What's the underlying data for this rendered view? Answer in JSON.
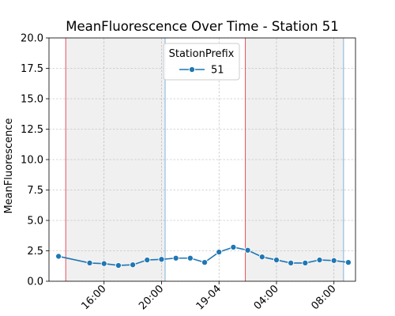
{
  "chart_data": {
    "type": "line",
    "title": "MeanFluorescence Over Time - Station 51",
    "xlabel": "",
    "ylabel": "MeanFluorescence",
    "ylim": [
      0,
      20
    ],
    "y_ticks": [
      0.0,
      2.5,
      5.0,
      7.5,
      10.0,
      12.5,
      15.0,
      17.5,
      20.0
    ],
    "y_tick_labels": [
      "0.0",
      "2.5",
      "5.0",
      "7.5",
      "10.0",
      "12.5",
      "15.0",
      "17.5",
      "20.0"
    ],
    "xlim": [
      "2000-04-18 12:10",
      "2000-04-19 09:30"
    ],
    "x_ticks": [
      "2000-04-18 16:00",
      "2000-04-18 20:00",
      "2000-04-19 00:00",
      "2000-04-19 04:00",
      "2000-04-19 08:00"
    ],
    "x_tick_labels": [
      "16:00",
      "20:00",
      "19-04",
      "04:00",
      "08:00"
    ],
    "grid": true,
    "legend": {
      "title": "StationPrefix",
      "placement": "top-center",
      "entries": [
        "51"
      ]
    },
    "series": [
      {
        "name": "51",
        "color": "#1f77b4",
        "marker": "circle",
        "points": [
          {
            "x": "2000-04-18 12:50",
            "y": 2.05
          },
          {
            "x": "2000-04-18 15:00",
            "y": 1.5
          },
          {
            "x": "2000-04-18 16:00",
            "y": 1.45
          },
          {
            "x": "2000-04-18 17:00",
            "y": 1.3
          },
          {
            "x": "2000-04-18 18:00",
            "y": 1.35
          },
          {
            "x": "2000-04-18 19:00",
            "y": 1.75
          },
          {
            "x": "2000-04-18 20:00",
            "y": 1.8
          },
          {
            "x": "2000-04-18 21:00",
            "y": 1.9
          },
          {
            "x": "2000-04-18 22:00",
            "y": 1.9
          },
          {
            "x": "2000-04-18 23:00",
            "y": 1.55
          },
          {
            "x": "2000-04-19 00:00",
            "y": 2.4
          },
          {
            "x": "2000-04-19 01:00",
            "y": 2.8
          },
          {
            "x": "2000-04-19 02:00",
            "y": 2.55
          },
          {
            "x": "2000-04-19 03:00",
            "y": 2.0
          },
          {
            "x": "2000-04-19 04:00",
            "y": 1.75
          },
          {
            "x": "2000-04-19 05:00",
            "y": 1.5
          },
          {
            "x": "2000-04-19 06:00",
            "y": 1.5
          },
          {
            "x": "2000-04-19 07:00",
            "y": 1.75
          },
          {
            "x": "2000-04-19 08:00",
            "y": 1.7
          },
          {
            "x": "2000-04-19 09:00",
            "y": 1.55
          }
        ]
      }
    ],
    "shaded_periods": [
      {
        "start": "2000-04-18 13:20",
        "end": "2000-04-18 20:15",
        "fill": "#f0f0f0"
      },
      {
        "start": "2000-04-19 01:50",
        "end": "2000-04-19 08:40",
        "fill": "#f0f0f0"
      }
    ],
    "vertical_lines": [
      {
        "x": "2000-04-18 13:20",
        "color": "#e8505b"
      },
      {
        "x": "2000-04-18 20:15",
        "color": "#7fb2d8"
      },
      {
        "x": "2000-04-19 01:50",
        "color": "#e8505b"
      },
      {
        "x": "2000-04-19 08:40",
        "color": "#7fb2d8"
      }
    ]
  }
}
